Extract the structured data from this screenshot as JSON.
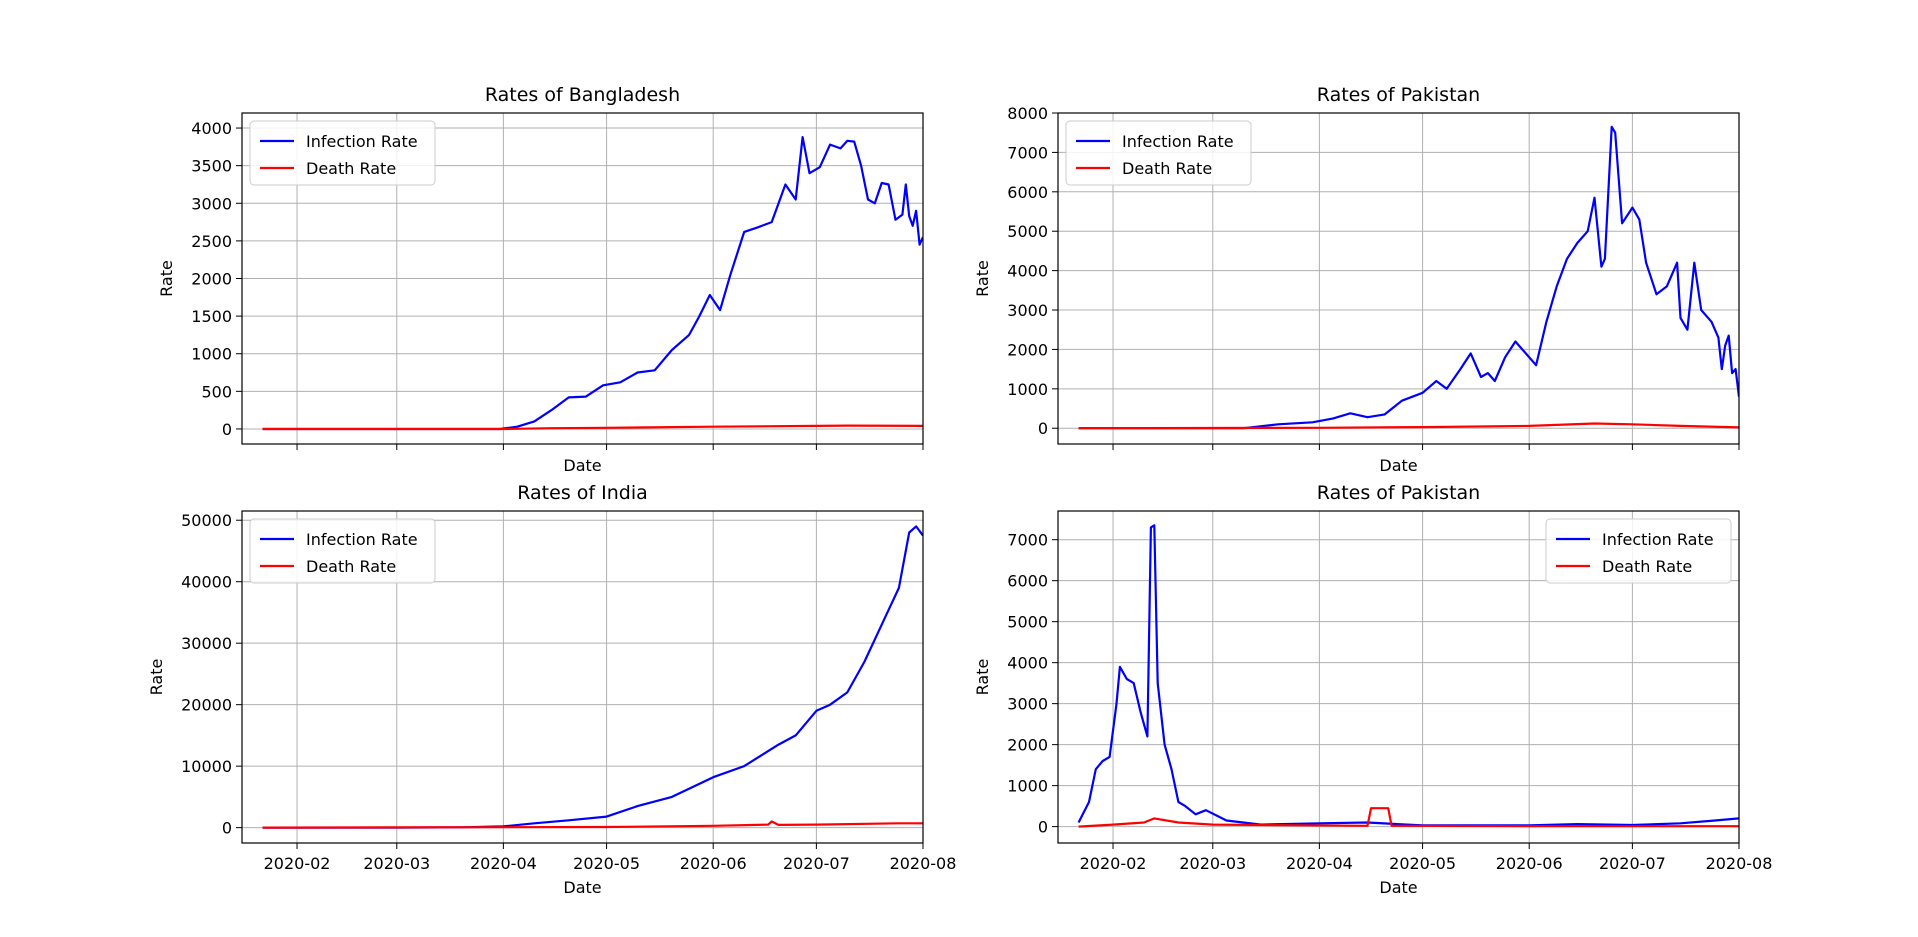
{
  "chart_data": [
    {
      "type": "line",
      "title": "Rates of Bangladesh",
      "xlabel": "Date",
      "ylabel": "Rate",
      "xlim": [
        "2020-01-16",
        "2020-08-01"
      ],
      "ylim": [
        -200,
        4200
      ],
      "yticks": [
        0,
        500,
        1000,
        1500,
        2000,
        2500,
        3000,
        3500,
        4000
      ],
      "xticks": [
        "2020-02",
        "2020-03",
        "2020-04",
        "2020-05",
        "2020-06",
        "2020-07",
        "2020-08"
      ],
      "show_xtick_labels": false,
      "grid": true,
      "legend": "upper-left",
      "series": [
        {
          "name": "Infection Rate",
          "color": "#0000ff",
          "points": [
            [
              "2020-01-22",
              0
            ],
            [
              "2020-03-01",
              0
            ],
            [
              "2020-03-31",
              0
            ],
            [
              "2020-04-05",
              30
            ],
            [
              "2020-04-10",
              100
            ],
            [
              "2020-04-15",
              250
            ],
            [
              "2020-04-20",
              420
            ],
            [
              "2020-04-25",
              430
            ],
            [
              "2020-04-30",
              580
            ],
            [
              "2020-05-05",
              620
            ],
            [
              "2020-05-10",
              750
            ],
            [
              "2020-05-15",
              780
            ],
            [
              "2020-05-20",
              1050
            ],
            [
              "2020-05-25",
              1250
            ],
            [
              "2020-05-28",
              1500
            ],
            [
              "2020-05-31",
              1780
            ],
            [
              "2020-06-03",
              1580
            ],
            [
              "2020-06-06",
              2050
            ],
            [
              "2020-06-10",
              2620
            ],
            [
              "2020-06-14",
              2680
            ],
            [
              "2020-06-18",
              2750
            ],
            [
              "2020-06-22",
              3250
            ],
            [
              "2020-06-25",
              3050
            ],
            [
              "2020-06-27",
              3880
            ],
            [
              "2020-06-29",
              3400
            ],
            [
              "2020-07-02",
              3480
            ],
            [
              "2020-07-05",
              3780
            ],
            [
              "2020-07-08",
              3730
            ],
            [
              "2020-07-10",
              3830
            ],
            [
              "2020-07-12",
              3820
            ],
            [
              "2020-07-14",
              3500
            ],
            [
              "2020-07-16",
              3050
            ],
            [
              "2020-07-18",
              3000
            ],
            [
              "2020-07-20",
              3270
            ],
            [
              "2020-07-22",
              3250
            ],
            [
              "2020-07-24",
              2780
            ],
            [
              "2020-07-26",
              2850
            ],
            [
              "2020-07-27",
              3250
            ],
            [
              "2020-07-28",
              2830
            ],
            [
              "2020-07-29",
              2700
            ],
            [
              "2020-07-30",
              2900
            ],
            [
              "2020-07-31",
              2450
            ],
            [
              "2020-08-01",
              2550
            ]
          ]
        },
        {
          "name": "Death Rate",
          "color": "#ff0000",
          "points": [
            [
              "2020-01-22",
              0
            ],
            [
              "2020-04-01",
              0
            ],
            [
              "2020-04-15",
              10
            ],
            [
              "2020-05-01",
              15
            ],
            [
              "2020-06-01",
              30
            ],
            [
              "2020-07-01",
              40
            ],
            [
              "2020-07-10",
              45
            ],
            [
              "2020-08-01",
              40
            ]
          ]
        }
      ]
    },
    {
      "type": "line",
      "title": "Rates of Pakistan",
      "xlabel": "Date",
      "ylabel": "Rate",
      "xlim": [
        "2020-01-16",
        "2020-08-01"
      ],
      "ylim": [
        -400,
        8000
      ],
      "yticks": [
        0,
        1000,
        2000,
        3000,
        4000,
        5000,
        6000,
        7000,
        8000
      ],
      "xticks": [
        "2020-02",
        "2020-03",
        "2020-04",
        "2020-05",
        "2020-06",
        "2020-07",
        "2020-08"
      ],
      "show_xtick_labels": false,
      "grid": true,
      "legend": "upper-left",
      "series": [
        {
          "name": "Infection Rate",
          "color": "#0000ff",
          "points": [
            [
              "2020-01-22",
              0
            ],
            [
              "2020-03-01",
              0
            ],
            [
              "2020-03-10",
              0
            ],
            [
              "2020-03-20",
              100
            ],
            [
              "2020-03-30",
              150
            ],
            [
              "2020-04-05",
              250
            ],
            [
              "2020-04-10",
              380
            ],
            [
              "2020-04-15",
              280
            ],
            [
              "2020-04-20",
              350
            ],
            [
              "2020-04-25",
              700
            ],
            [
              "2020-05-01",
              900
            ],
            [
              "2020-05-05",
              1200
            ],
            [
              "2020-05-08",
              1000
            ],
            [
              "2020-05-12",
              1500
            ],
            [
              "2020-05-15",
              1900
            ],
            [
              "2020-05-18",
              1300
            ],
            [
              "2020-05-20",
              1400
            ],
            [
              "2020-05-22",
              1200
            ],
            [
              "2020-05-25",
              1800
            ],
            [
              "2020-05-28",
              2200
            ],
            [
              "2020-05-31",
              1900
            ],
            [
              "2020-06-03",
              1600
            ],
            [
              "2020-06-06",
              2700
            ],
            [
              "2020-06-09",
              3600
            ],
            [
              "2020-06-12",
              4300
            ],
            [
              "2020-06-15",
              4700
            ],
            [
              "2020-06-18",
              5000
            ],
            [
              "2020-06-20",
              5850
            ],
            [
              "2020-06-22",
              4100
            ],
            [
              "2020-06-23",
              4300
            ],
            [
              "2020-06-25",
              7650
            ],
            [
              "2020-06-26",
              7500
            ],
            [
              "2020-06-28",
              5200
            ],
            [
              "2020-07-01",
              5600
            ],
            [
              "2020-07-03",
              5300
            ],
            [
              "2020-07-05",
              4200
            ],
            [
              "2020-07-08",
              3400
            ],
            [
              "2020-07-11",
              3600
            ],
            [
              "2020-07-14",
              4200
            ],
            [
              "2020-07-15",
              2800
            ],
            [
              "2020-07-17",
              2500
            ],
            [
              "2020-07-19",
              4200
            ],
            [
              "2020-07-21",
              3000
            ],
            [
              "2020-07-24",
              2700
            ],
            [
              "2020-07-26",
              2300
            ],
            [
              "2020-07-27",
              1500
            ],
            [
              "2020-07-28",
              2100
            ],
            [
              "2020-07-29",
              2350
            ],
            [
              "2020-07-30",
              1400
            ],
            [
              "2020-07-31",
              1500
            ],
            [
              "2020-08-01",
              800
            ]
          ]
        },
        {
          "name": "Death Rate",
          "color": "#ff0000",
          "points": [
            [
              "2020-01-22",
              0
            ],
            [
              "2020-04-01",
              10
            ],
            [
              "2020-05-01",
              30
            ],
            [
              "2020-06-01",
              60
            ],
            [
              "2020-06-20",
              120
            ],
            [
              "2020-07-01",
              100
            ],
            [
              "2020-07-15",
              60
            ],
            [
              "2020-08-01",
              20
            ]
          ]
        }
      ]
    },
    {
      "type": "line",
      "title": "Rates of India",
      "xlabel": "Date",
      "ylabel": "Rate",
      "xlim": [
        "2020-01-16",
        "2020-08-01"
      ],
      "ylim": [
        -2500,
        51500
      ],
      "yticks": [
        0,
        10000,
        20000,
        30000,
        40000,
        50000
      ],
      "xticks": [
        "2020-02",
        "2020-03",
        "2020-04",
        "2020-05",
        "2020-06",
        "2020-07",
        "2020-08"
      ],
      "show_xtick_labels": true,
      "grid": true,
      "legend": "upper-left",
      "series": [
        {
          "name": "Infection Rate",
          "color": "#0000ff",
          "points": [
            [
              "2020-01-22",
              0
            ],
            [
              "2020-03-01",
              0
            ],
            [
              "2020-03-20",
              50
            ],
            [
              "2020-04-01",
              200
            ],
            [
              "2020-04-10",
              700
            ],
            [
              "2020-04-20",
              1200
            ],
            [
              "2020-05-01",
              1800
            ],
            [
              "2020-05-10",
              3500
            ],
            [
              "2020-05-20",
              5000
            ],
            [
              "2020-06-01",
              8200
            ],
            [
              "2020-06-10",
              10000
            ],
            [
              "2020-06-20",
              13500
            ],
            [
              "2020-06-25",
              15000
            ],
            [
              "2020-07-01",
              19000
            ],
            [
              "2020-07-05",
              20000
            ],
            [
              "2020-07-10",
              22000
            ],
            [
              "2020-07-15",
              27000
            ],
            [
              "2020-07-20",
              33000
            ],
            [
              "2020-07-25",
              39000
            ],
            [
              "2020-07-28",
              48000
            ],
            [
              "2020-07-30",
              49000
            ],
            [
              "2020-08-01",
              47500
            ]
          ]
        },
        {
          "name": "Death Rate",
          "color": "#ff0000",
          "points": [
            [
              "2020-01-22",
              0
            ],
            [
              "2020-05-01",
              100
            ],
            [
              "2020-06-01",
              300
            ],
            [
              "2020-06-17",
              500
            ],
            [
              "2020-06-18",
              1000
            ],
            [
              "2020-06-20",
              450
            ],
            [
              "2020-07-01",
              500
            ],
            [
              "2020-07-25",
              700
            ],
            [
              "2020-08-01",
              700
            ]
          ]
        }
      ]
    },
    {
      "type": "line",
      "title": "Rates of Pakistan",
      "xlabel": "Date",
      "ylabel": "Rate",
      "xlim": [
        "2020-01-16",
        "2020-08-01"
      ],
      "ylim": [
        -400,
        7700
      ],
      "yticks": [
        0,
        1000,
        2000,
        3000,
        4000,
        5000,
        6000,
        7000
      ],
      "xticks": [
        "2020-02",
        "2020-03",
        "2020-04",
        "2020-05",
        "2020-06",
        "2020-07",
        "2020-08"
      ],
      "show_xtick_labels": true,
      "grid": true,
      "legend": "upper-right",
      "series": [
        {
          "name": "Infection Rate",
          "color": "#0000ff",
          "points": [
            [
              "2020-01-22",
              100
            ],
            [
              "2020-01-25",
              600
            ],
            [
              "2020-01-27",
              1400
            ],
            [
              "2020-01-29",
              1600
            ],
            [
              "2020-01-31",
              1700
            ],
            [
              "2020-02-02",
              3000
            ],
            [
              "2020-02-03",
              3900
            ],
            [
              "2020-02-05",
              3600
            ],
            [
              "2020-02-07",
              3500
            ],
            [
              "2020-02-09",
              2800
            ],
            [
              "2020-02-11",
              2200
            ],
            [
              "2020-02-12",
              7300
            ],
            [
              "2020-02-13",
              7350
            ],
            [
              "2020-02-14",
              3500
            ],
            [
              "2020-02-16",
              2000
            ],
            [
              "2020-02-18",
              1400
            ],
            [
              "2020-02-20",
              600
            ],
            [
              "2020-02-22",
              500
            ],
            [
              "2020-02-25",
              300
            ],
            [
              "2020-02-28",
              400
            ],
            [
              "2020-03-05",
              150
            ],
            [
              "2020-03-15",
              50
            ],
            [
              "2020-04-01",
              80
            ],
            [
              "2020-04-15",
              100
            ],
            [
              "2020-05-01",
              30
            ],
            [
              "2020-06-01",
              30
            ],
            [
              "2020-06-15",
              60
            ],
            [
              "2020-07-01",
              40
            ],
            [
              "2020-07-15",
              80
            ],
            [
              "2020-07-25",
              150
            ],
            [
              "2020-08-01",
              200
            ]
          ]
        },
        {
          "name": "Death Rate",
          "color": "#ff0000",
          "points": [
            [
              "2020-01-22",
              0
            ],
            [
              "2020-02-01",
              50
            ],
            [
              "2020-02-10",
              100
            ],
            [
              "2020-02-13",
              200
            ],
            [
              "2020-02-20",
              100
            ],
            [
              "2020-03-01",
              50
            ],
            [
              "2020-04-15",
              20
            ],
            [
              "2020-04-16",
              450
            ],
            [
              "2020-04-21",
              450
            ],
            [
              "2020-04-22",
              20
            ],
            [
              "2020-06-01",
              10
            ],
            [
              "2020-08-01",
              10
            ]
          ]
        }
      ]
    }
  ]
}
